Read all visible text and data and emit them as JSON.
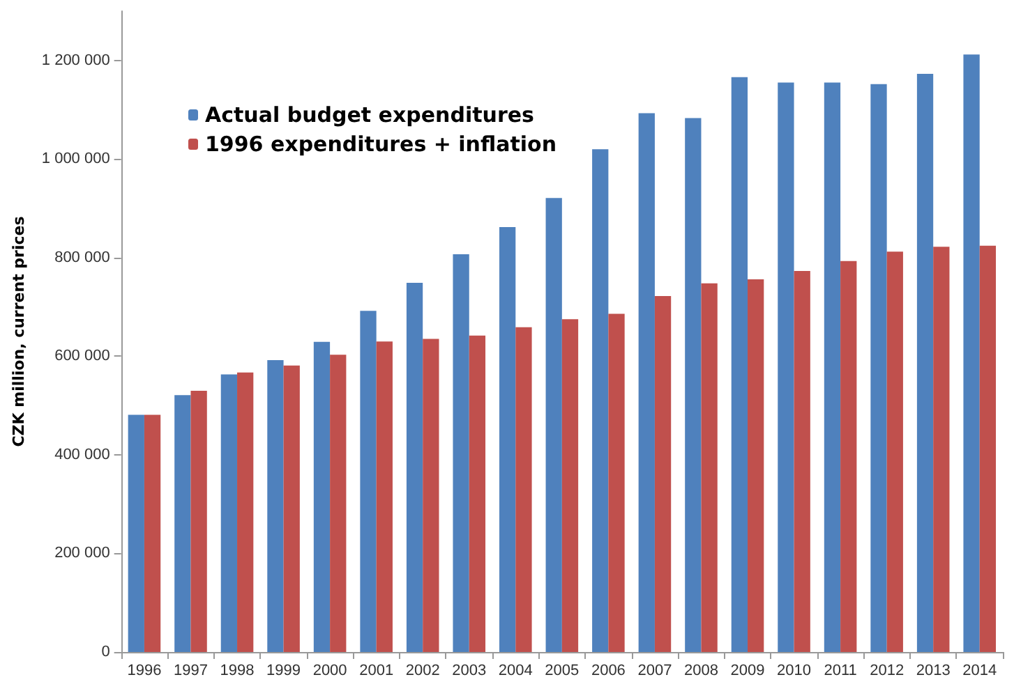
{
  "chart_data": {
    "type": "bar",
    "ylabel": "CZK million, current prices",
    "categories": [
      "1996",
      "1997",
      "1998",
      "1999",
      "2000",
      "2001",
      "2002",
      "2003",
      "2004",
      "2005",
      "2006",
      "2007",
      "2008",
      "2009",
      "2010",
      "2011",
      "2012",
      "2013",
      "2014"
    ],
    "series": [
      {
        "name": "Actual budget expenditures",
        "color": "#4f81bd",
        "values": [
          481000,
          521000,
          563000,
          592000,
          629000,
          692000,
          749000,
          807000,
          862000,
          921000,
          1020000,
          1093000,
          1083000,
          1166000,
          1155000,
          1155000,
          1152000,
          1173000,
          1212000
        ]
      },
      {
        "name": "1996 expenditures + inflation",
        "color": "#c0504d",
        "values": [
          481000,
          530000,
          567000,
          581000,
          603000,
          630000,
          635000,
          642000,
          659000,
          675000,
          686000,
          722000,
          748000,
          756000,
          773000,
          793000,
          812000,
          822000,
          824000
        ]
      }
    ],
    "ylim": [
      0,
      1300000
    ],
    "yticks": [
      {
        "value": 0,
        "label": "0"
      },
      {
        "value": 200000,
        "label": "200 000"
      },
      {
        "value": 400000,
        "label": "400 000"
      },
      {
        "value": 600000,
        "label": "600 000"
      },
      {
        "value": 800000,
        "label": "800 000"
      },
      {
        "value": 1000000,
        "label": "1 000 000"
      },
      {
        "value": 1200000,
        "label": "1 200 000"
      }
    ],
    "grid": false,
    "legend": "top left"
  }
}
